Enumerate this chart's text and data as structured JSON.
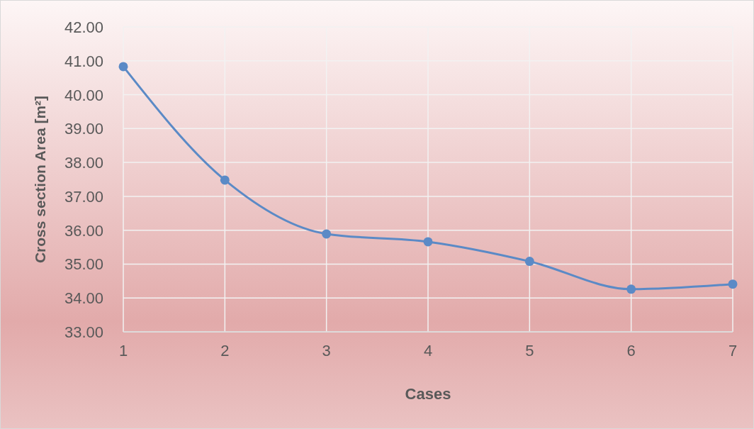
{
  "chart_data": {
    "type": "line",
    "xlabel": "Cases",
    "ylabel": "Cross section Area [m²]",
    "x": [
      1,
      2,
      3,
      4,
      5,
      6,
      7
    ],
    "series": [
      {
        "color": "#5b8ac6",
        "values": [
          40.83,
          37.48,
          35.89,
          35.66,
          35.08,
          34.26,
          34.41
        ]
      }
    ],
    "xlim": [
      1,
      7
    ],
    "xticks": [
      1,
      2,
      3,
      4,
      5,
      6,
      7
    ],
    "ylim": [
      33,
      42
    ],
    "yticks": [
      {
        "value": 33,
        "label": "33.00"
      },
      {
        "value": 34,
        "label": "34.00"
      },
      {
        "value": 35,
        "label": "35.00"
      },
      {
        "value": 36,
        "label": "36.00"
      },
      {
        "value": 37,
        "label": "37.00"
      },
      {
        "value": 38,
        "label": "38.00"
      },
      {
        "value": 39,
        "label": "39.00"
      },
      {
        "value": 40,
        "label": "40.00"
      },
      {
        "value": 41,
        "label": "41.00"
      },
      {
        "value": 42,
        "label": "42.00"
      }
    ],
    "grid": true,
    "marker": "circle",
    "line_style": "solid"
  }
}
